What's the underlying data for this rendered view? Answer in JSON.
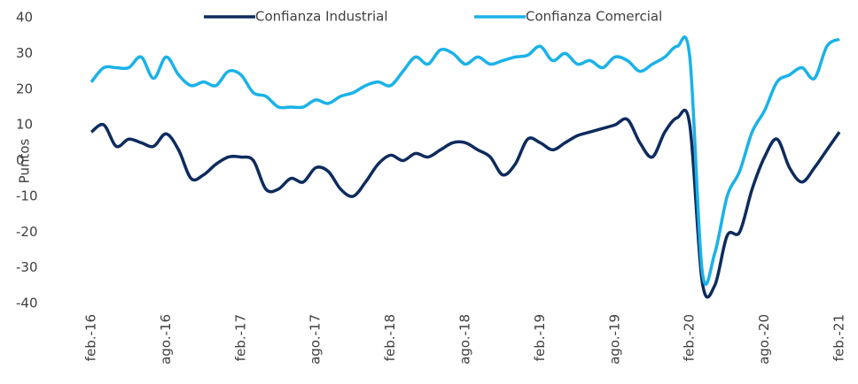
{
  "chart_data": {
    "type": "line",
    "y_label": "Puntos",
    "categories": [
      "feb.-16",
      null,
      null,
      null,
      null,
      null,
      "ago.-16",
      null,
      null,
      null,
      null,
      null,
      "feb.-17",
      null,
      null,
      null,
      null,
      null,
      "ago.-17",
      null,
      null,
      null,
      null,
      null,
      "feb.-18",
      null,
      null,
      null,
      null,
      null,
      "ago.-18",
      null,
      null,
      null,
      null,
      null,
      "feb.-19",
      null,
      null,
      null,
      null,
      null,
      "ago.-19",
      null,
      null,
      null,
      null,
      null,
      "feb.-20",
      null,
      null,
      null,
      null,
      null,
      "ago.-20",
      null,
      null,
      null,
      null,
      null,
      "feb.-21"
    ],
    "series": [
      {
        "name": "Confianza Industrial",
        "color": "#0d2b5e",
        "values": [
          8,
          10,
          4,
          6,
          5,
          4,
          7.5,
          3,
          -5,
          -4,
          -1,
          1,
          1,
          0,
          -8,
          -8,
          -5,
          -6,
          -2,
          -3,
          -8,
          -10,
          -6,
          -1,
          1.5,
          0,
          2,
          1,
          3,
          5,
          5,
          3,
          1,
          -4,
          -1,
          6,
          5,
          3,
          5,
          7,
          8,
          9,
          10,
          11.5,
          5,
          1,
          8,
          12,
          10,
          -34,
          -35,
          -21,
          -20,
          -8,
          1,
          6,
          -2,
          -6,
          -2,
          3,
          8
        ]
      },
      {
        "name": "Confianza Comercial",
        "color": "#1ab2e8",
        "values": [
          22,
          26,
          26,
          26,
          29,
          23,
          29,
          24,
          21,
          22,
          21,
          25,
          24,
          19,
          18,
          15,
          15,
          15,
          17,
          16,
          18,
          19,
          21,
          22,
          21,
          25,
          29,
          27,
          31,
          30,
          27,
          29,
          27,
          28,
          29,
          29.5,
          32,
          28,
          30,
          27,
          28,
          26,
          29,
          28,
          25,
          27,
          29,
          32,
          29,
          -31,
          -26,
          -10,
          -3,
          8,
          14,
          22,
          24,
          26,
          23,
          32,
          34
        ]
      }
    ],
    "ylim": [
      -40,
      40
    ],
    "yticks": [
      -40,
      -30,
      -20,
      -10,
      0,
      10,
      20,
      30,
      40
    ],
    "legend": "top",
    "grid": false
  }
}
